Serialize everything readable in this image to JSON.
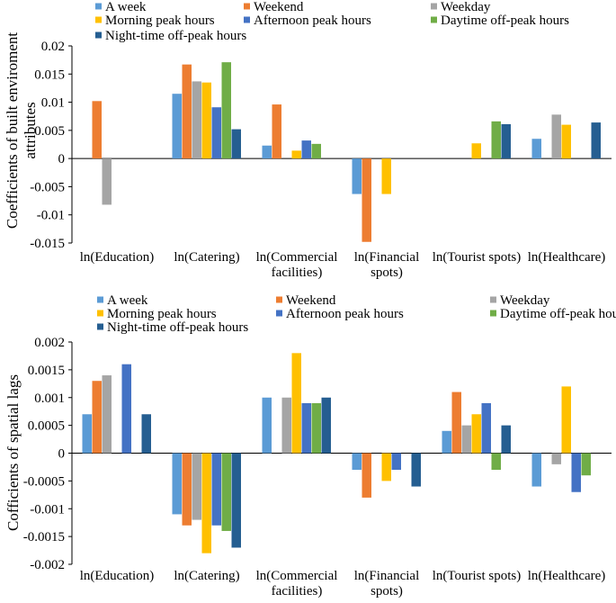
{
  "chart_data": [
    {
      "type": "bar",
      "ylabel": "Coefficients of built enviroment attributes",
      "ylim": [
        -0.015,
        0.02
      ],
      "yticks": [
        -0.015,
        -0.01,
        -0.005,
        0,
        0.005,
        0.01,
        0.015,
        0.02
      ],
      "ytick_labels": [
        "-0.015",
        "-0.01",
        "-0.005",
        "0",
        "0.005",
        "0.01",
        "0.015",
        "0.02"
      ],
      "categories": [
        "ln(Education)",
        "ln(Catering)",
        "ln(Commercial facilities)",
        "ln(Financial spots)",
        "ln(Tourist spots)",
        "ln(Healthcare)"
      ],
      "category_labels": [
        [
          "ln(Education)"
        ],
        [
          "ln(Catering)"
        ],
        [
          "ln(Commercial",
          "facilities)"
        ],
        [
          "ln(Financial",
          "spots)"
        ],
        [
          "ln(Tourist spots)"
        ],
        [
          "ln(Healthcare)"
        ]
      ],
      "legend_position": "top",
      "series": [
        {
          "name": "A week",
          "color": "#5B9BD5",
          "values": [
            0,
            0.0115,
            0.0023,
            -0.0063,
            0,
            0.0035
          ]
        },
        {
          "name": "Weekend",
          "color": "#ED7D31",
          "values": [
            0.0102,
            0.0167,
            0.0096,
            -0.0148,
            0,
            0
          ]
        },
        {
          "name": "Weekday",
          "color": "#A5A5A5",
          "values": [
            -0.0082,
            0.0137,
            0,
            0,
            0,
            0.0078
          ]
        },
        {
          "name": "Morning peak hours",
          "color": "#FFC000",
          "values": [
            0,
            0.0135,
            0.0014,
            -0.0063,
            0.0027,
            0.006
          ]
        },
        {
          "name": "Afternoon peak hours",
          "color": "#4472C4",
          "values": [
            0,
            0.0091,
            0.0032,
            0,
            0,
            0
          ]
        },
        {
          "name": "Daytime off-peak hours",
          "color": "#70AD47",
          "values": [
            0,
            0.0171,
            0.0026,
            0,
            0.0066,
            0
          ]
        },
        {
          "name": "Night-time off-peak hours",
          "color": "#255E91",
          "values": [
            0,
            0.0052,
            0,
            0,
            0.0061,
            0.0064
          ]
        }
      ]
    },
    {
      "type": "bar",
      "ylabel": "Cofficients of spatial lags",
      "ylim": [
        -0.002,
        0.002
      ],
      "yticks": [
        -0.002,
        -0.0015,
        -0.001,
        -0.0005,
        0,
        0.0005,
        0.001,
        0.0015,
        0.002
      ],
      "ytick_labels": [
        "-0.002",
        "-0.0015",
        "-0.001",
        "-0.0005",
        "0",
        "0.0005",
        "0.001",
        "0.0015",
        "0.002"
      ],
      "categories": [
        "ln(Education)",
        "ln(Catering)",
        "ln(Commercial facilities)",
        "ln(Financial spots)",
        "ln(Tourist spots)",
        "ln(Healthcare)"
      ],
      "category_labels": [
        [
          "ln(Education)"
        ],
        [
          "ln(Catering)"
        ],
        [
          "ln(Commercial",
          "facilities)"
        ],
        [
          "ln(Financial",
          "spots)"
        ],
        [
          "ln(Tourist spots)"
        ],
        [
          "ln(Healthcare)"
        ]
      ],
      "legend_position": "top",
      "series": [
        {
          "name": "A week",
          "color": "#5B9BD5",
          "values": [
            0.0007,
            -0.0011,
            0.001,
            -0.0003,
            0.0004,
            -0.0006
          ]
        },
        {
          "name": "Weekend",
          "color": "#ED7D31",
          "values": [
            0.0013,
            -0.0013,
            0,
            -0.0008,
            0.0011,
            0
          ]
        },
        {
          "name": "Weekday",
          "color": "#A5A5A5",
          "values": [
            0.0014,
            -0.0012,
            0.001,
            0,
            0.0005,
            -0.0002
          ]
        },
        {
          "name": "Morning peak hours",
          "color": "#FFC000",
          "values": [
            0,
            -0.0018,
            0.0018,
            -0.0005,
            0.0007,
            0.0012
          ]
        },
        {
          "name": "Afternoon peak hours",
          "color": "#4472C4",
          "values": [
            0.0016,
            -0.0013,
            0.0009,
            -0.0003,
            0.0009,
            -0.0007
          ]
        },
        {
          "name": "Daytime off-peak hours",
          "color": "#70AD47",
          "values": [
            0,
            -0.0014,
            0.0009,
            0,
            -0.0003,
            -0.0004
          ]
        },
        {
          "name": "Night-time off-peak hours",
          "color": "#255E91",
          "values": [
            0.0007,
            -0.0017,
            0.001,
            -0.0006,
            0.0005,
            0
          ]
        }
      ]
    }
  ]
}
